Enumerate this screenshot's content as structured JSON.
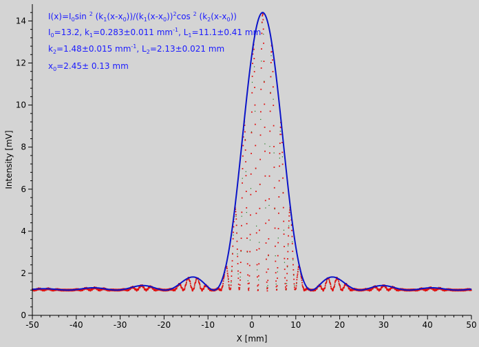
{
  "chart_data": {
    "type": "scatter",
    "xlabel": "X [mm]",
    "ylabel": "Intensity [mV]",
    "xlim": [
      -50,
      50
    ],
    "ylim": [
      0,
      14.8
    ],
    "xticks": [
      -50,
      -40,
      -30,
      -20,
      -10,
      0,
      10,
      20,
      30,
      40,
      50
    ],
    "yticks": [
      0,
      2,
      4,
      6,
      8,
      10,
      12,
      14
    ],
    "grid": false,
    "annotations": {
      "formula": {
        "parts": [
          "I(x)=I",
          "0",
          "sin ",
          "2",
          " (k",
          "1",
          "(x-x",
          "0",
          "))/(k",
          "1",
          "(x-x",
          "0",
          "))",
          "2",
          "cos ",
          "2",
          " (k",
          "2",
          "(x-x",
          "0",
          "))"
        ]
      },
      "line2": {
        "parts": [
          "I",
          "0",
          "=13.2,  k",
          "1",
          "=0.283±0.011 mm",
          "-1",
          ",   L",
          "1",
          "=11.1±0.41 mm"
        ]
      },
      "line3": {
        "parts": [
          "k",
          "2",
          "=1.48±0.015 mm",
          "-1",
          ",   L",
          "2",
          "=2.13±0.021 mm"
        ]
      },
      "line4": {
        "parts": [
          "x",
          "0",
          "=2.45±  0.13 mm"
        ]
      }
    },
    "fit_params": {
      "I0": 13.2,
      "k1": 0.283,
      "k2": 1.48,
      "x0": 2.45,
      "offset": 1.2
    },
    "series": [
      {
        "type": "line",
        "color": "#0a14c8",
        "role": "envelope"
      },
      {
        "type": "scatter",
        "color": "#e01010",
        "role": "measured"
      },
      {
        "type": "scatter",
        "color": "#1a7a1a",
        "role": "fit"
      }
    ]
  }
}
